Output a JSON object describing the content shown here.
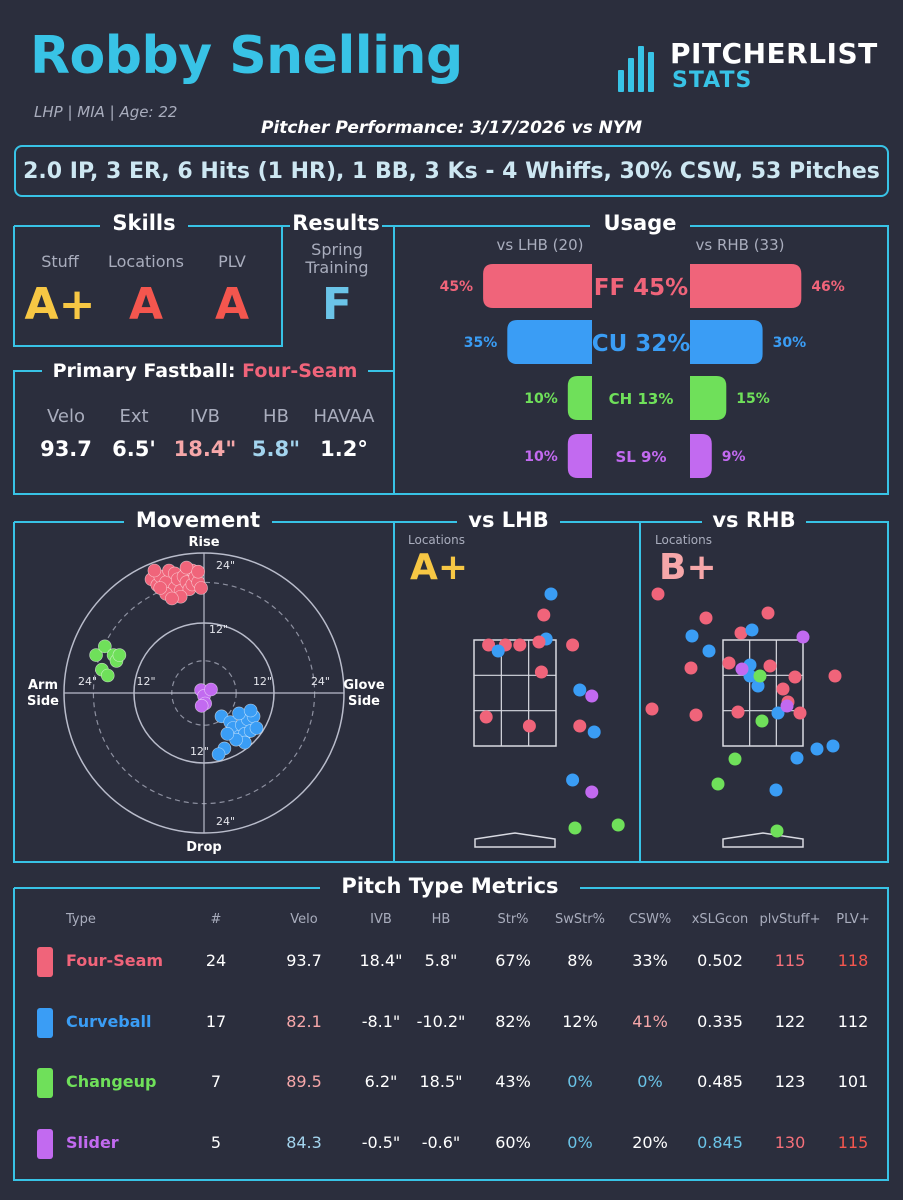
{
  "header": {
    "name": "Robby Snelling",
    "info": "LHP | MIA | Age: 22",
    "performance": "Pitcher Performance: 3/17/2026 vs NYM",
    "statline": "2.0 IP, 3 ER, 6 Hits (1 HR), 1 BB, 3 Ks - 4 Whiffs, 30% CSW, 53 Pitches",
    "logo_top": "PITCHERLIST",
    "logo_bottom": "STATS"
  },
  "colors": {
    "accent": "#38c3e6",
    "background": "#2b2e3d",
    "four_seam": "#f0647a",
    "curveball": "#3a9df5",
    "changeup": "#6fe05a",
    "slider": "#c26af0",
    "grade_gold": "#f7c744",
    "grade_red": "#f4564e",
    "grade_blue": "#6bc4e8",
    "grade_pink": "#f6a7a9"
  },
  "skills": {
    "title": "Skills",
    "items": [
      {
        "label": "Stuff",
        "grade": "A+",
        "color": "#f7c744"
      },
      {
        "label": "Locations",
        "grade": "A",
        "color": "#f4564e"
      },
      {
        "label": "PLV",
        "grade": "A",
        "color": "#f4564e"
      }
    ]
  },
  "results": {
    "title": "Results",
    "label_line1": "Spring",
    "label_line2": "Training",
    "grade": "F",
    "color": "#6bc4e8"
  },
  "fastball": {
    "title_prefix": "Primary Fastball:",
    "pitch": "Four-Seam",
    "metrics": [
      {
        "label": "Velo",
        "value": "93.7",
        "color": "#ffffff"
      },
      {
        "label": "Ext",
        "value": "6.5'",
        "color": "#ffffff"
      },
      {
        "label": "IVB",
        "value": "18.4\"",
        "color": "#f6a7a9"
      },
      {
        "label": "HB",
        "value": "5.8\"",
        "color": "#a3d4ee"
      },
      {
        "label": "HAVAA",
        "value": "1.2°",
        "color": "#ffffff"
      }
    ]
  },
  "usage": {
    "title": "Usage",
    "lhb_label": "vs LHB (20)",
    "rhb_label": "vs RHB (33)",
    "rows": [
      {
        "pitch": "FF 45%",
        "lhb": 45,
        "rhb": 46,
        "lhb_text": "45%",
        "rhb_text": "46%",
        "color": "#f0647a",
        "big": true
      },
      {
        "pitch": "CU 32%",
        "lhb": 35,
        "rhb": 30,
        "lhb_text": "35%",
        "rhb_text": "30%",
        "color": "#3a9df5",
        "big": true
      },
      {
        "pitch": "CH 13%",
        "lhb": 10,
        "rhb": 15,
        "lhb_text": "10%",
        "rhb_text": "15%",
        "color": "#6fe05a",
        "big": false
      },
      {
        "pitch": "SL 9%",
        "lhb": 10,
        "rhb": 9,
        "lhb_text": "10%",
        "rhb_text": "9%",
        "color": "#c26af0",
        "big": false
      }
    ]
  },
  "movement": {
    "title": "Movement",
    "rise": "Rise",
    "drop": "Drop",
    "arm_side_1": "Arm",
    "arm_side_2": "Side",
    "glove_side_1": "Glove",
    "glove_side_2": "Side",
    "ring_labels": [
      "24\"",
      "12\"",
      "12\"",
      "12\"",
      "24\"",
      "24\"",
      "24\"",
      "12\""
    ],
    "pitches": {
      "four_seam": [
        [
          -9,
          19.5
        ],
        [
          -8,
          18.5
        ],
        [
          -7.5,
          20
        ],
        [
          -6.5,
          19
        ],
        [
          -6,
          21
        ],
        [
          -5,
          20.5
        ],
        [
          -5,
          18
        ],
        [
          -4.5,
          19.5
        ],
        [
          -4,
          17.5
        ],
        [
          -3.5,
          20
        ],
        [
          -3,
          19
        ],
        [
          -2.5,
          17.8
        ],
        [
          -2,
          18.6
        ],
        [
          -2,
          21
        ],
        [
          -1.5,
          20
        ],
        [
          -1,
          19
        ],
        [
          -0.5,
          18
        ],
        [
          -6.5,
          17
        ],
        [
          -4,
          16.5
        ],
        [
          -7.5,
          18
        ],
        [
          -3,
          21.5
        ],
        [
          -5.5,
          16.2
        ],
        [
          -8.5,
          21
        ],
        [
          -1,
          20.8
        ]
      ],
      "curveball": [
        [
          3,
          -4
        ],
        [
          4.5,
          -5
        ],
        [
          5,
          -6
        ],
        [
          6,
          -7.5
        ],
        [
          6.5,
          -5.5
        ],
        [
          7,
          -7
        ],
        [
          7.5,
          -4.5
        ],
        [
          8,
          -6.5
        ],
        [
          8.5,
          -4
        ],
        [
          9,
          -6
        ],
        [
          7,
          -8.5
        ],
        [
          5.5,
          -8
        ],
        [
          3.5,
          -9.5
        ],
        [
          2.5,
          -10.5
        ],
        [
          6,
          -3.5
        ],
        [
          8,
          -3
        ],
        [
          4,
          -7
        ]
      ],
      "changeup": [
        [
          -18.5,
          6.5
        ],
        [
          -17.5,
          4
        ],
        [
          -17,
          8
        ],
        [
          -16.5,
          3
        ],
        [
          -15.5,
          6.5
        ],
        [
          -15,
          5.5
        ],
        [
          -14.5,
          6.5
        ]
      ],
      "slider": [
        [
          -0.5,
          0.5
        ],
        [
          0,
          -0.5
        ],
        [
          1.2,
          0.6
        ],
        [
          0.2,
          -1.8
        ],
        [
          -0.4,
          -2.2
        ]
      ]
    }
  },
  "lhb": {
    "title": "vs LHB",
    "locations_label": "Locations",
    "grade": "A+",
    "grade_color": "#f7c744",
    "pitches": [
      {
        "x": 0.6,
        "y": 3.95,
        "c": "four_seam"
      },
      {
        "x": -0.55,
        "y": 3.45,
        "c": "four_seam"
      },
      {
        "x": -0.2,
        "y": 3.45,
        "c": "four_seam"
      },
      {
        "x": 0.1,
        "y": 3.45,
        "c": "four_seam"
      },
      {
        "x": 0.55,
        "y": 3.0,
        "c": "four_seam"
      },
      {
        "x": -0.6,
        "y": 2.25,
        "c": "four_seam"
      },
      {
        "x": 0.3,
        "y": 2.1,
        "c": "four_seam"
      },
      {
        "x": 1.35,
        "y": 2.1,
        "c": "four_seam"
      },
      {
        "x": 0.65,
        "y": 3.55,
        "c": "curveball"
      },
      {
        "x": 0.75,
        "y": 4.3,
        "c": "curveball"
      },
      {
        "x": -0.35,
        "y": 3.35,
        "c": "curveball"
      },
      {
        "x": 1.35,
        "y": 2.7,
        "c": "curveball"
      },
      {
        "x": 1.65,
        "y": 2.0,
        "c": "curveball"
      },
      {
        "x": 1.2,
        "y": 1.2,
        "c": "curveball"
      },
      {
        "x": 1.25,
        "y": 0.4,
        "c": "changeup"
      },
      {
        "x": 2.15,
        "y": 0.45,
        "c": "changeup"
      },
      {
        "x": 1.6,
        "y": 2.6,
        "c": "slider"
      },
      {
        "x": 1.6,
        "y": 1.0,
        "c": "slider"
      },
      {
        "x": 1.2,
        "y": 3.45,
        "c": "four_seam"
      },
      {
        "x": 0.5,
        "y": 3.5,
        "c": "four_seam"
      }
    ]
  },
  "rhb": {
    "title": "vs RHB",
    "locations_label": "Locations",
    "grade": "B+",
    "grade_color": "#f6a7a9"
  },
  "table": {
    "title": "Pitch Type Metrics",
    "headers": [
      "Type",
      "#",
      "Velo",
      "IVB",
      "HB",
      "Str%",
      "SwStr%",
      "CSW%",
      "xSLGcon",
      "plvStuff+",
      "PLV+"
    ],
    "rows": [
      {
        "type": "Four-Seam",
        "color": "#f0647a",
        "cells": [
          {
            "v": "24",
            "c": "#ffffff"
          },
          {
            "v": "93.7",
            "c": "#ffffff"
          },
          {
            "v": "18.4\"",
            "c": "#ffffff"
          },
          {
            "v": "5.8\"",
            "c": "#ffffff"
          },
          {
            "v": "67%",
            "c": "#ffffff"
          },
          {
            "v": "8%",
            "c": "#ffffff"
          },
          {
            "v": "33%",
            "c": "#ffffff"
          },
          {
            "v": "0.502",
            "c": "#ffffff"
          },
          {
            "v": "115",
            "c": "#f6707a"
          },
          {
            "v": "118",
            "c": "#f4564e"
          }
        ]
      },
      {
        "type": "Curveball",
        "color": "#3a9df5",
        "cells": [
          {
            "v": "17",
            "c": "#ffffff"
          },
          {
            "v": "82.1",
            "c": "#f6a7a9"
          },
          {
            "v": "-8.1\"",
            "c": "#ffffff"
          },
          {
            "v": "-10.2\"",
            "c": "#ffffff"
          },
          {
            "v": "82%",
            "c": "#ffffff"
          },
          {
            "v": "12%",
            "c": "#ffffff"
          },
          {
            "v": "41%",
            "c": "#f6a7a9"
          },
          {
            "v": "0.335",
            "c": "#ffffff"
          },
          {
            "v": "122",
            "c": "#ffffff"
          },
          {
            "v": "112",
            "c": "#ffffff"
          }
        ]
      },
      {
        "type": "Changeup",
        "color": "#6fe05a",
        "cells": [
          {
            "v": "7",
            "c": "#ffffff"
          },
          {
            "v": "89.5",
            "c": "#f6a7a9"
          },
          {
            "v": "6.2\"",
            "c": "#ffffff"
          },
          {
            "v": "18.5\"",
            "c": "#ffffff"
          },
          {
            "v": "43%",
            "c": "#ffffff"
          },
          {
            "v": "0%",
            "c": "#6bc4e8"
          },
          {
            "v": "0%",
            "c": "#6bc4e8"
          },
          {
            "v": "0.485",
            "c": "#ffffff"
          },
          {
            "v": "123",
            "c": "#ffffff"
          },
          {
            "v": "101",
            "c": "#ffffff"
          }
        ]
      },
      {
        "type": "Slider",
        "color": "#c26af0",
        "cells": [
          {
            "v": "5",
            "c": "#ffffff"
          },
          {
            "v": "84.3",
            "c": "#a3d4ee"
          },
          {
            "v": "-0.5\"",
            "c": "#ffffff"
          },
          {
            "v": "-0.6\"",
            "c": "#ffffff"
          },
          {
            "v": "60%",
            "c": "#ffffff"
          },
          {
            "v": "0%",
            "c": "#6bc4e8"
          },
          {
            "v": "20%",
            "c": "#ffffff"
          },
          {
            "v": "0.845",
            "c": "#6bc4e8"
          },
          {
            "v": "130",
            "c": "#f6707a"
          },
          {
            "v": "115",
            "c": "#f4564e"
          }
        ]
      }
    ]
  }
}
